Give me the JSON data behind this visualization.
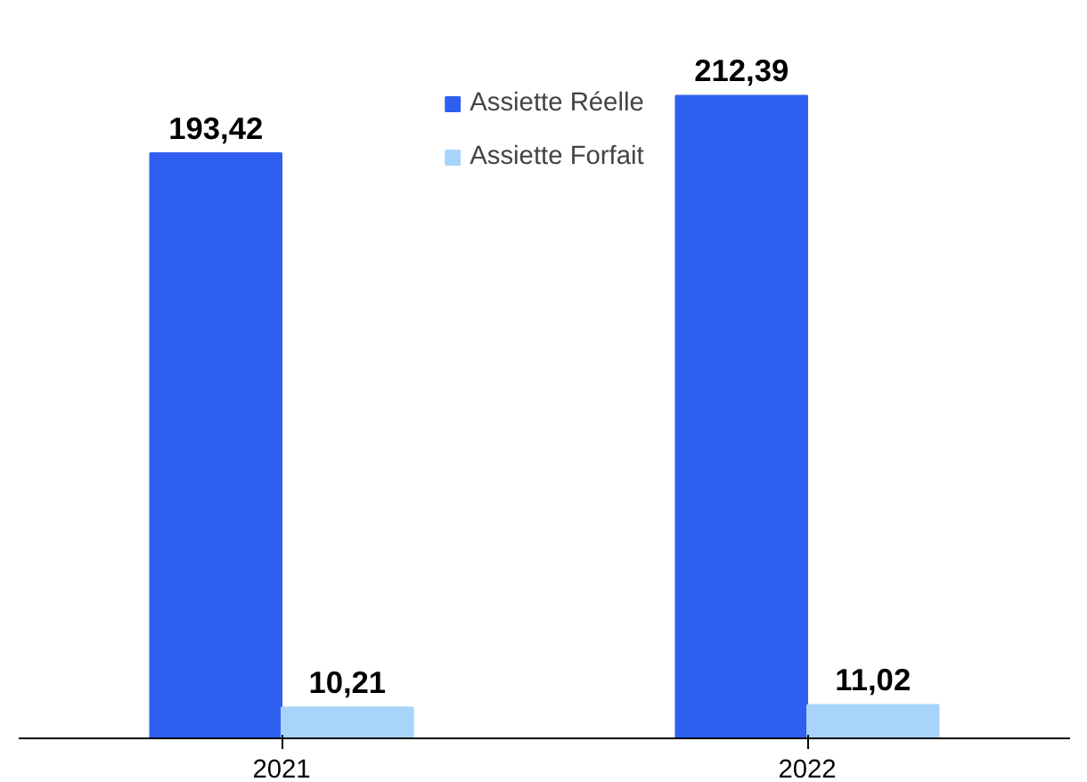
{
  "chart_data": {
    "type": "bar",
    "categories": [
      "2021",
      "2022"
    ],
    "series": [
      {
        "name": "Assiette Réelle",
        "color": "#2f5ff0",
        "values": [
          193.42,
          212.39
        ],
        "value_labels": [
          "193,42",
          "212,39"
        ]
      },
      {
        "name": "Assiette Forfait",
        "color": "#a6d4fa",
        "values": [
          10.21,
          11.02
        ],
        "value_labels": [
          "10,21",
          "11,02"
        ]
      }
    ],
    "legend": "top",
    "grid": false
  }
}
